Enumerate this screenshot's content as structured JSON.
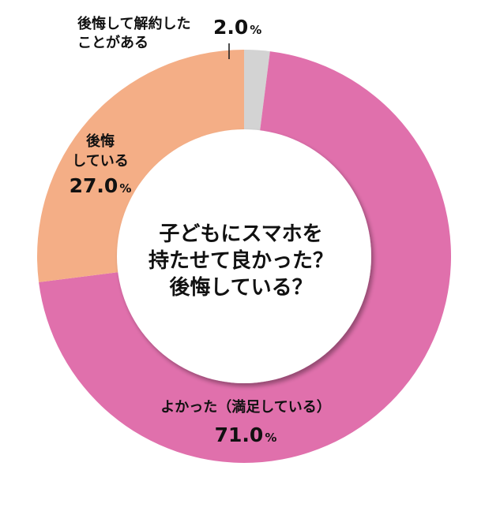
{
  "chart_data": {
    "type": "pie",
    "donut": true,
    "title": "子どもにスマホを持たせて良かった？後悔している？",
    "center_lines": [
      "子どもにスマホを",
      "持たせて良かった？",
      "後悔している？"
    ],
    "slices": [
      {
        "label_lines": [
          "後悔して解約した",
          "ことがある"
        ],
        "value": 2.0,
        "value_text": "2.0",
        "unit": "%",
        "color": "#d3d3d3"
      },
      {
        "label_lines": [
          "よかった（満足している）"
        ],
        "value": 71.0,
        "value_text": "71.0",
        "unit": "%",
        "color": "#e070ac"
      },
      {
        "label_lines": [
          "後悔",
          "している"
        ],
        "value": 27.0,
        "value_text": "27.0",
        "unit": "%",
        "color": "#f4ae86"
      }
    ],
    "legend": "none",
    "grid": false
  }
}
